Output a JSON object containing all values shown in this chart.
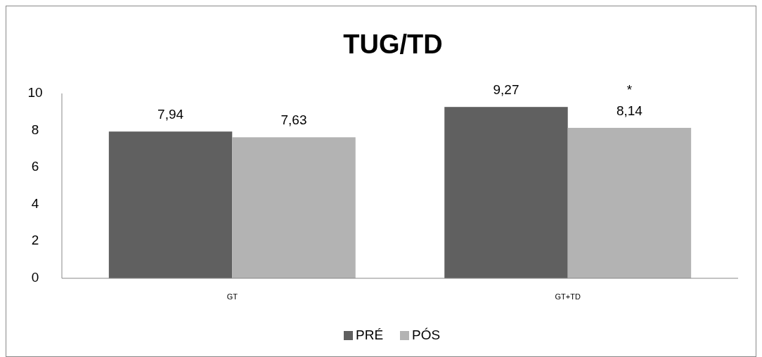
{
  "chart_data": {
    "type": "bar",
    "title": "TUG/TD",
    "categories": [
      "GT",
      "GT+TD"
    ],
    "series": [
      {
        "name": "PRÉ",
        "color": "#606060",
        "values": [
          7.94,
          9.27
        ]
      },
      {
        "name": "PÓS",
        "color": "#b3b3b3",
        "values": [
          7.63,
          8.14
        ]
      }
    ],
    "value_labels": [
      [
        "7,94",
        "9,27"
      ],
      [
        "7,63",
        "8,14"
      ]
    ],
    "ylim": [
      0,
      10
    ],
    "yticks": [
      0,
      2,
      4,
      6,
      8,
      10
    ],
    "grid": false,
    "legend": "bottom",
    "annotations": [
      "*"
    ]
  }
}
